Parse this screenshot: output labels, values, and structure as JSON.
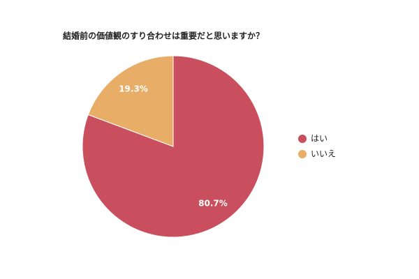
{
  "chart_data": {
    "type": "pie",
    "title": "結婚前の価値観のすり合わせは重要だと思いますか？",
    "categories": [
      "はい",
      "いいえ"
    ],
    "values": [
      80.7,
      19.3
    ],
    "value_labels": [
      "80.7%",
      "19.3%"
    ],
    "colors": [
      "#c94f5e",
      "#e8ae68"
    ],
    "legend": "right"
  }
}
